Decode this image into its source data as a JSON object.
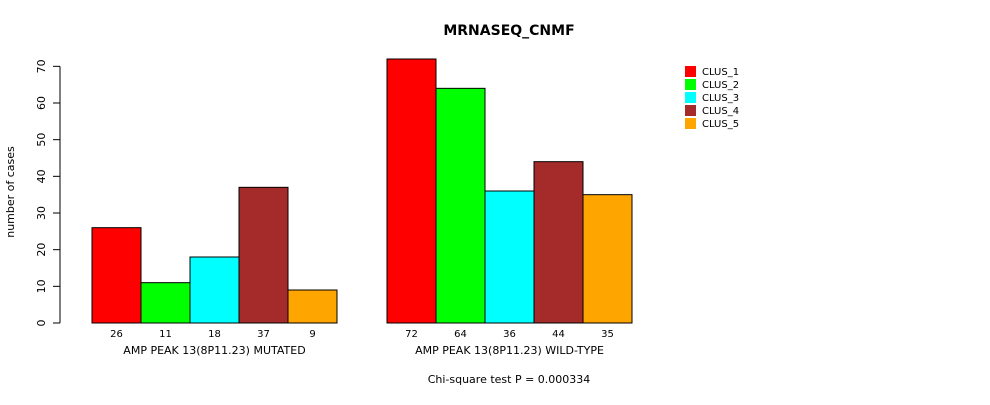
{
  "chart_data": {
    "type": "bar",
    "title": "MRNASEQ_CNMF",
    "ylabel": "number of cases",
    "ylim": [
      0,
      72
    ],
    "yticks": [
      0,
      10,
      20,
      30,
      40,
      50,
      60,
      70
    ],
    "groups": [
      {
        "label": "AMP PEAK 13(8P11.23) MUTATED",
        "values": [
          26,
          11,
          18,
          37,
          9
        ]
      },
      {
        "label": "AMP PEAK 13(8P11.23) WILD-TYPE",
        "values": [
          72,
          64,
          36,
          44,
          35
        ]
      }
    ],
    "series": [
      {
        "name": "CLUS_1",
        "color": "#ff0000"
      },
      {
        "name": "CLUS_2",
        "color": "#00ff00"
      },
      {
        "name": "CLUS_3",
        "color": "#00ffff"
      },
      {
        "name": "CLUS_4",
        "color": "#a52a2a"
      },
      {
        "name": "CLUS_5",
        "color": "#ffa500"
      }
    ],
    "legend_position": "top-right",
    "grid": false,
    "footnote": "Chi-square test P = 0.000334"
  }
}
